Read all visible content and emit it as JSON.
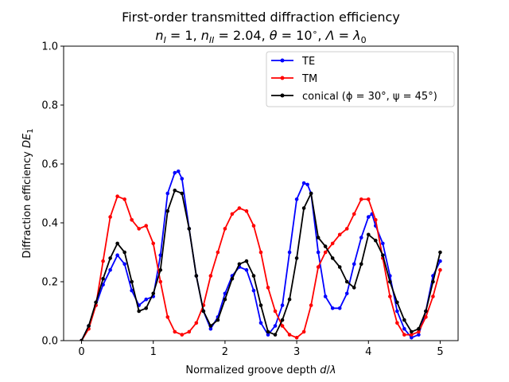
{
  "chart_data": {
    "type": "line",
    "title_line1": "First-order transmitted diffraction efficiency",
    "title_line2": "nI = 1, nII = 2.04, θ = 10°, Λ = λ0",
    "xlabel": "Normalized groove depth d/λ",
    "ylabel": "Diffraction efficiency DE1",
    "xlim": [
      -0.25,
      5.25
    ],
    "ylim": [
      0,
      1.0
    ],
    "x_ticks": [
      "0",
      "1",
      "2",
      "3",
      "4",
      "5"
    ],
    "y_ticks": [
      "0.0",
      "0.2",
      "0.4",
      "0.6",
      "0.8",
      "1.0"
    ],
    "grid": false,
    "legend_position": "upper right",
    "series": [
      {
        "name": "TE",
        "color": "#0000ff",
        "x": [
          0,
          0.1,
          0.2,
          0.3,
          0.4,
          0.5,
          0.6,
          0.7,
          0.8,
          0.9,
          1.0,
          1.1,
          1.2,
          1.3,
          1.35,
          1.4,
          1.5,
          1.6,
          1.7,
          1.8,
          1.9,
          2.0,
          2.1,
          2.2,
          2.3,
          2.4,
          2.5,
          2.6,
          2.7,
          2.8,
          2.9,
          3.0,
          3.1,
          3.15,
          3.2,
          3.3,
          3.4,
          3.5,
          3.6,
          3.7,
          3.8,
          3.9,
          4.0,
          4.05,
          4.1,
          4.2,
          4.3,
          4.4,
          4.5,
          4.6,
          4.7,
          4.8,
          4.9,
          5.0
        ],
        "y": [
          0.0,
          0.05,
          0.12,
          0.19,
          0.24,
          0.29,
          0.26,
          0.17,
          0.12,
          0.14,
          0.15,
          0.29,
          0.5,
          0.57,
          0.575,
          0.55,
          0.38,
          0.22,
          0.1,
          0.04,
          0.08,
          0.16,
          0.22,
          0.25,
          0.24,
          0.17,
          0.06,
          0.02,
          0.05,
          0.12,
          0.3,
          0.48,
          0.535,
          0.53,
          0.5,
          0.3,
          0.15,
          0.11,
          0.11,
          0.16,
          0.26,
          0.35,
          0.42,
          0.43,
          0.39,
          0.33,
          0.22,
          0.1,
          0.04,
          0.01,
          0.02,
          0.1,
          0.22,
          0.27
        ]
      },
      {
        "name": "TM",
        "color": "#ff0000",
        "x": [
          0,
          0.1,
          0.2,
          0.3,
          0.4,
          0.5,
          0.6,
          0.7,
          0.8,
          0.9,
          1.0,
          1.1,
          1.2,
          1.3,
          1.4,
          1.5,
          1.6,
          1.7,
          1.8,
          1.9,
          2.0,
          2.1,
          2.2,
          2.3,
          2.4,
          2.5,
          2.6,
          2.7,
          2.8,
          2.9,
          3.0,
          3.1,
          3.2,
          3.3,
          3.4,
          3.5,
          3.6,
          3.7,
          3.8,
          3.9,
          4.0,
          4.1,
          4.2,
          4.3,
          4.4,
          4.5,
          4.6,
          4.7,
          4.8,
          4.9,
          5.0
        ],
        "y": [
          0.0,
          0.04,
          0.12,
          0.27,
          0.42,
          0.49,
          0.48,
          0.41,
          0.38,
          0.39,
          0.33,
          0.2,
          0.08,
          0.03,
          0.02,
          0.03,
          0.06,
          0.12,
          0.22,
          0.3,
          0.38,
          0.43,
          0.45,
          0.44,
          0.39,
          0.3,
          0.18,
          0.1,
          0.05,
          0.02,
          0.01,
          0.03,
          0.12,
          0.25,
          0.3,
          0.33,
          0.36,
          0.38,
          0.43,
          0.48,
          0.48,
          0.41,
          0.28,
          0.15,
          0.06,
          0.02,
          0.02,
          0.03,
          0.08,
          0.15,
          0.24
        ]
      },
      {
        "name": "conical (ϕ = 30°, ψ = 45°)",
        "color": "#000000",
        "x": [
          0,
          0.1,
          0.2,
          0.3,
          0.4,
          0.5,
          0.6,
          0.7,
          0.8,
          0.9,
          1.0,
          1.1,
          1.2,
          1.3,
          1.4,
          1.5,
          1.6,
          1.7,
          1.8,
          1.9,
          2.0,
          2.1,
          2.2,
          2.3,
          2.4,
          2.5,
          2.6,
          2.7,
          2.8,
          2.9,
          3.0,
          3.1,
          3.2,
          3.3,
          3.4,
          3.5,
          3.6,
          3.7,
          3.8,
          3.9,
          4.0,
          4.1,
          4.2,
          4.3,
          4.4,
          4.5,
          4.6,
          4.7,
          4.8,
          4.9,
          5.0
        ],
        "y": [
          0.0,
          0.05,
          0.13,
          0.21,
          0.28,
          0.33,
          0.3,
          0.2,
          0.1,
          0.11,
          0.16,
          0.24,
          0.44,
          0.51,
          0.5,
          0.38,
          0.22,
          0.1,
          0.05,
          0.07,
          0.14,
          0.21,
          0.26,
          0.27,
          0.22,
          0.12,
          0.03,
          0.02,
          0.07,
          0.14,
          0.28,
          0.45,
          0.5,
          0.35,
          0.32,
          0.28,
          0.25,
          0.2,
          0.18,
          0.26,
          0.36,
          0.34,
          0.29,
          0.2,
          0.13,
          0.07,
          0.03,
          0.04,
          0.1,
          0.2,
          0.3
        ]
      }
    ]
  }
}
